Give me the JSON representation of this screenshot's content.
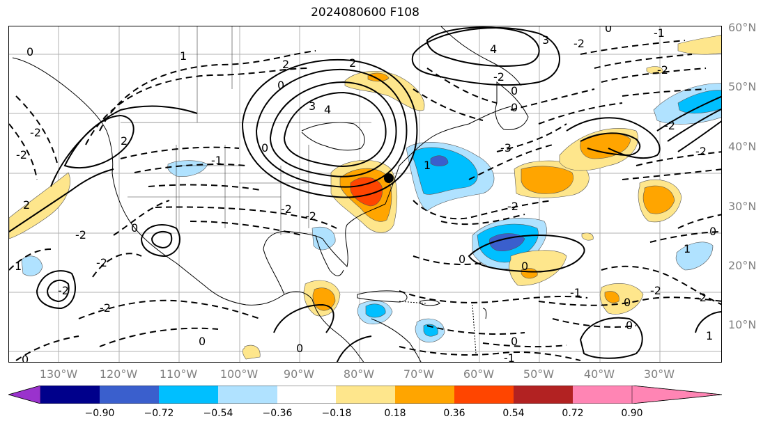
{
  "title": "2024080600 F108",
  "map": {
    "lat_labels": [
      "60°N",
      "50°N",
      "40°N",
      "30°N",
      "20°N",
      "10°N"
    ],
    "lon_labels": [
      "130°W",
      "120°W",
      "110°W",
      "100°W",
      "90°W",
      "80°W",
      "70°W",
      "60°W",
      "50°W",
      "40°W",
      "30°W"
    ],
    "contour_labels": [
      "0",
      "1",
      "2",
      "3",
      "4",
      "-1",
      "-2",
      "-3"
    ],
    "colors": {
      "purple": "#9a32cd",
      "navy": "#00008b",
      "royal": "#3a5fcd",
      "blue": "#00bfff",
      "lightblue": "#b0e2ff",
      "white": "#ffffff",
      "yellow": "#fee68c",
      "orange": "#ffa500",
      "redorange": "#ff4500",
      "darkred": "#b22222",
      "pink": "#ff85b4"
    }
  },
  "colorbar": {
    "ticks": [
      "−0.90",
      "−0.72",
      "−0.54",
      "−0.36",
      "−0.18",
      "0.18",
      "0.36",
      "0.54",
      "0.72",
      "0.90"
    ],
    "colors": [
      "#9a32cd",
      "#00008b",
      "#3a5fcd",
      "#00bfff",
      "#b0e2ff",
      "#ffffff",
      "#fee68c",
      "#ffa500",
      "#ff4500",
      "#b22222",
      "#ff85b4"
    ]
  }
}
